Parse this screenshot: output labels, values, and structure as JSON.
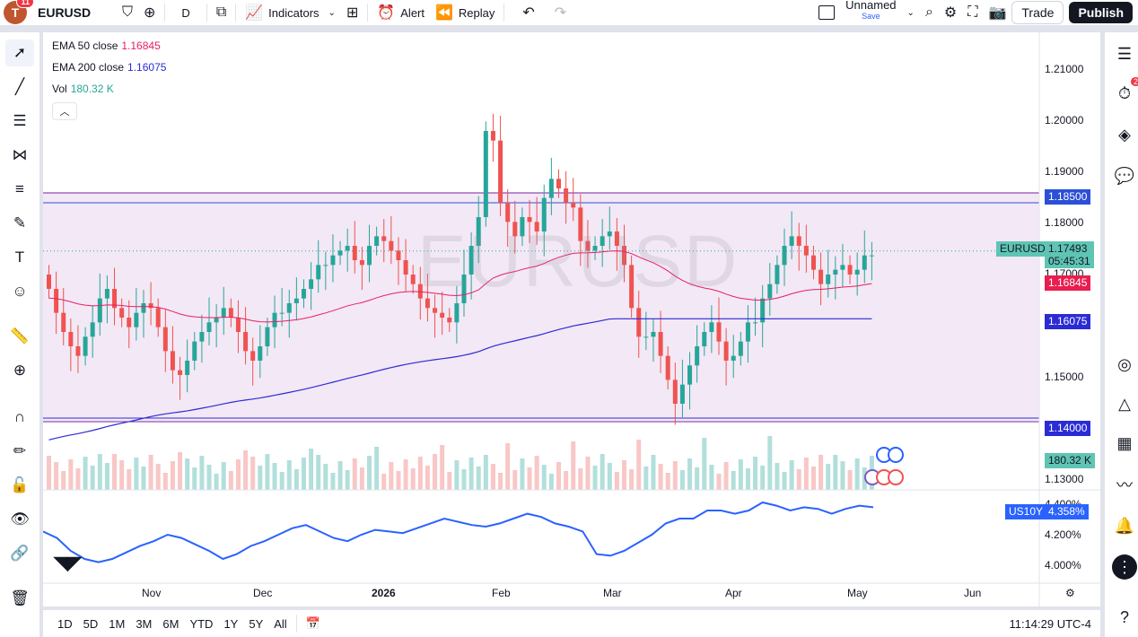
{
  "topbar": {
    "avatar_letter": "T",
    "avatar_badge": "11",
    "symbol": "EURUSD",
    "interval": "D",
    "indicators_label": "Indicators",
    "alert_label": "Alert",
    "replay_label": "Replay",
    "layout_name": "Unnamed",
    "save_label": "Save",
    "trade_label": "Trade",
    "publish_label": "Publish"
  },
  "legend": {
    "ema50_label": "EMA 50 close",
    "ema50_value": "1.16845",
    "ema200_label": "EMA 200 close",
    "ema200_value": "1.16075",
    "vol_label": "Vol",
    "vol_value": "180.32 K",
    "colors": {
      "ema50": "#e91e63",
      "ema200": "#2b2bd6",
      "vol": "#26a69a"
    }
  },
  "watermark": "EURUSD",
  "price_axis": {
    "ticks": [
      "1.21000",
      "1.20000",
      "1.19000",
      "1.18000",
      "1.17000",
      "1.15000",
      "1.13000"
    ],
    "us10y_ticks": [
      "4.400%",
      "4.200%",
      "4.000%"
    ],
    "tags": {
      "level_high": "1.18500",
      "symbol_tag": "EURUSD",
      "last_price": "1.17493",
      "countdown": "05:45:31",
      "ema50": "1.16845",
      "ema200": "1.16075",
      "level_low": "1.14000",
      "volume": "180.32 K",
      "us10y_symbol": "US10Y",
      "us10y_value": "4.358%"
    }
  },
  "time_axis": [
    "Nov",
    "Dec",
    "2026",
    "Feb",
    "Mar",
    "Apr",
    "May",
    "Jun"
  ],
  "bottombar": {
    "ranges": [
      "1D",
      "5D",
      "1M",
      "3M",
      "6M",
      "YTD",
      "1Y",
      "5Y",
      "All"
    ],
    "clock": "11:14:29 UTC-4"
  },
  "right_panel": {
    "alerts_badge": "2"
  },
  "chart_data": {
    "type": "candlestick",
    "symbol": "EURUSD",
    "interval": "D",
    "price_range": [
      1.125,
      1.215
    ],
    "horizontal_levels": [
      1.185,
      1.14
    ],
    "ema50_last": 1.16845,
    "ema200_last": 1.16075,
    "last_price": 1.17493,
    "closes": [
      1.167,
      1.162,
      1.158,
      1.155,
      1.153,
      1.157,
      1.16,
      1.165,
      1.167,
      1.163,
      1.161,
      1.159,
      1.162,
      1.164,
      1.163,
      1.159,
      1.154,
      1.15,
      1.149,
      1.152,
      1.156,
      1.158,
      1.16,
      1.161,
      1.163,
      1.161,
      1.158,
      1.154,
      1.152,
      1.155,
      1.159,
      1.162,
      1.162,
      1.164,
      1.165,
      1.167,
      1.169,
      1.172,
      1.172,
      1.174,
      1.175,
      1.176,
      1.173,
      1.172,
      1.176,
      1.178,
      1.177,
      1.175,
      1.173,
      1.17,
      1.168,
      1.165,
      1.163,
      1.162,
      1.161,
      1.16,
      1.164,
      1.17,
      1.176,
      1.182,
      1.2,
      1.198,
      1.185,
      1.181,
      1.178,
      1.182,
      1.181,
      1.179,
      1.186,
      1.19,
      1.188,
      1.185,
      1.184,
      1.177,
      1.175,
      1.176,
      1.178,
      1.179,
      1.176,
      1.172,
      1.163,
      1.157,
      1.157,
      1.158,
      1.153,
      1.148,
      1.143,
      1.147,
      1.151,
      1.155,
      1.158,
      1.16,
      1.156,
      1.152,
      1.153,
      1.156,
      1.16,
      1.16,
      1.165,
      1.168,
      1.172,
      1.176,
      1.178,
      1.176,
      1.174,
      1.171,
      1.168,
      1.17,
      1.171,
      1.172,
      1.17,
      1.171,
      1.174,
      1.174
    ],
    "volume_axis_label": "Vol",
    "volume_last": "180.32 K",
    "us10y": {
      "symbol": "US10Y",
      "last": 4.358,
      "range": [
        3.95,
        4.45
      ],
      "values": [
        4.22,
        4.18,
        4.1,
        4.05,
        4.03,
        4.05,
        4.09,
        4.13,
        4.16,
        4.2,
        4.18,
        4.14,
        4.1,
        4.05,
        4.08,
        4.13,
        4.16,
        4.2,
        4.24,
        4.26,
        4.22,
        4.18,
        4.16,
        4.2,
        4.23,
        4.22,
        4.21,
        4.24,
        4.27,
        4.3,
        4.28,
        4.26,
        4.25,
        4.27,
        4.3,
        4.33,
        4.31,
        4.27,
        4.25,
        4.22,
        4.08,
        4.07,
        4.1,
        4.15,
        4.2,
        4.27,
        4.3,
        4.3,
        4.35,
        4.35,
        4.33,
        4.35,
        4.4,
        4.38,
        4.35,
        4.37,
        4.36,
        4.33,
        4.36,
        4.38,
        4.37
      ]
    }
  }
}
